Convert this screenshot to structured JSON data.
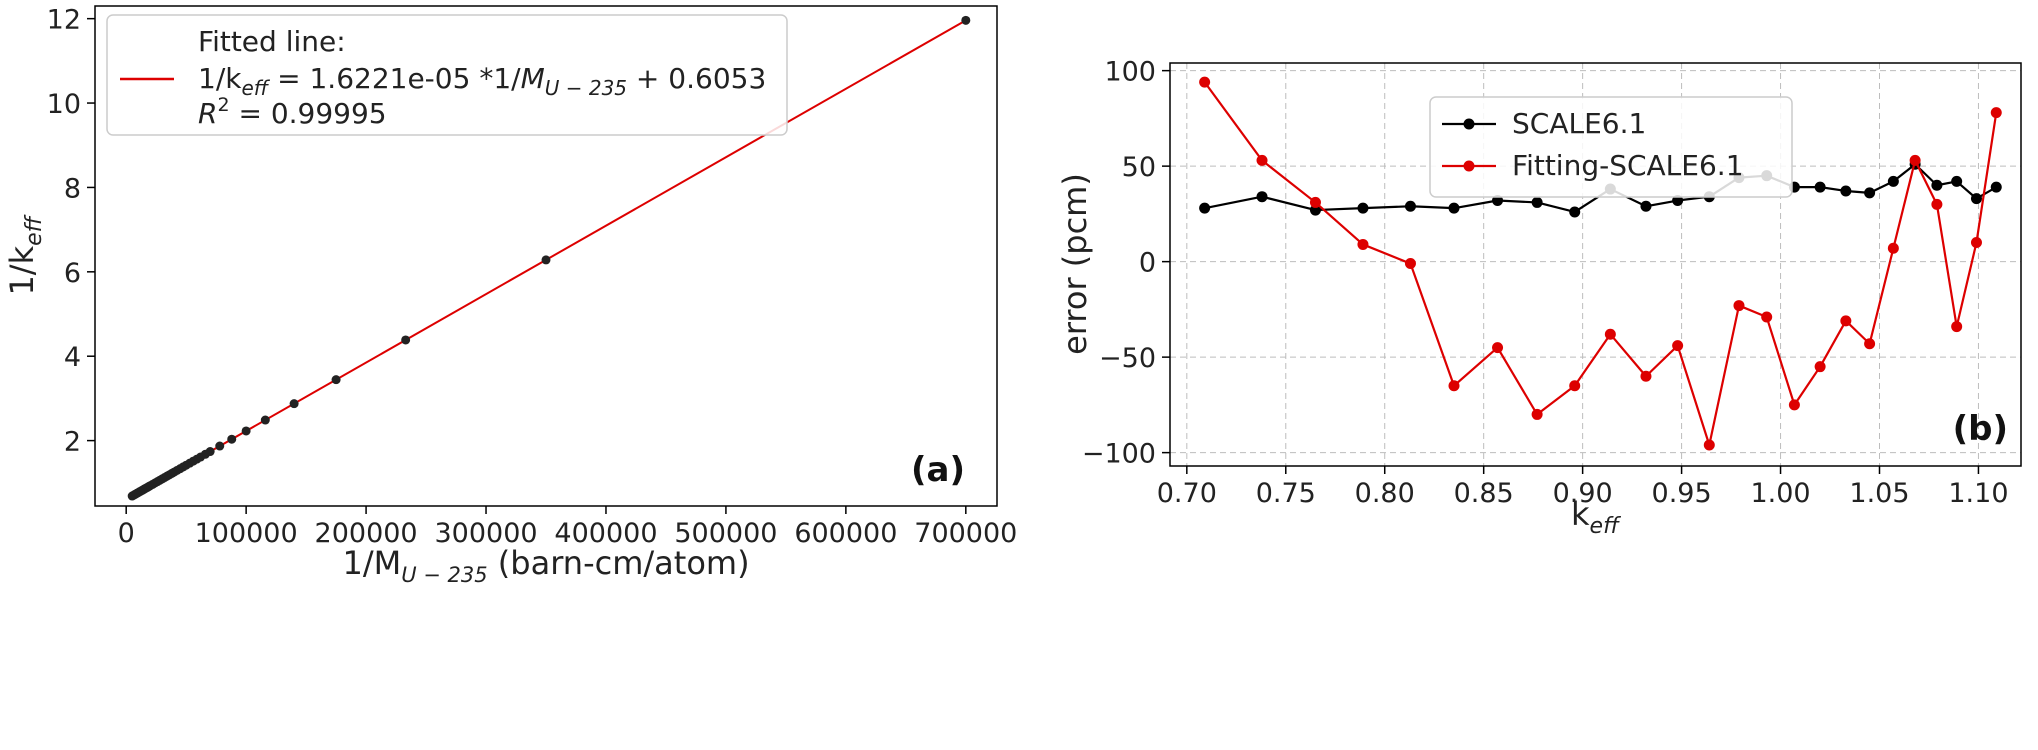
{
  "chart_data": [
    {
      "type": "scatter",
      "panel_label": "(a)",
      "xlabel_main": "1/M",
      "xlabel_sub": "U − 235",
      "xlabel_rest": " (barn-cm/atom)",
      "ylabel_main": "1/k",
      "ylabel_sub": "eff",
      "xlim": [
        -26000,
        726000
      ],
      "ylim": [
        0.45,
        12.3
      ],
      "xticks": [
        0,
        100000,
        200000,
        300000,
        400000,
        500000,
        600000,
        700000
      ],
      "xtick_labels": [
        "0",
        "100000",
        "200000",
        "300000",
        "400000",
        "500000",
        "600000",
        "700000"
      ],
      "yticks": [
        2,
        4,
        6,
        8,
        10,
        12
      ],
      "ytick_labels": [
        "2",
        "4",
        "6",
        "8",
        "10",
        "12"
      ],
      "legend": {
        "line1": "Fitted line:",
        "line2_a": "1/k",
        "line2_b": "eff",
        "line2_c": " = 1.6221e-05 *1/",
        "line2_d": "M",
        "line2_e": "U − 235",
        "line2_f": " + 0.6053",
        "line3_a": "R",
        "line3_b": "2",
        "line3_c": " = 0.99995",
        "placement": "upper-left"
      },
      "fit": {
        "slope": 1.6221e-05,
        "intercept": 0.6053,
        "x_range": [
          5000,
          700000
        ]
      },
      "series": [
        {
          "name": "data",
          "x": [
            5000,
            6000,
            7000,
            8000,
            9000,
            10000,
            11000,
            12000,
            13000,
            14000,
            15000,
            16000,
            17000,
            18000,
            19000,
            20000,
            22000,
            24000,
            26000,
            28000,
            30000,
            32000,
            34000,
            36000,
            38000,
            40000,
            42500,
            45000,
            47500,
            50000,
            53000,
            56000,
            59000,
            62000,
            66000,
            70000,
            78000,
            88000,
            100000,
            116000,
            140000,
            175000,
            233000,
            350000,
            700000
          ],
          "y": [
            0.686,
            0.703,
            0.719,
            0.735,
            0.751,
            0.768,
            0.784,
            0.8,
            0.816,
            0.832,
            0.849,
            0.865,
            0.881,
            0.897,
            0.914,
            0.93,
            0.962,
            0.995,
            1.027,
            1.06,
            1.092,
            1.124,
            1.157,
            1.189,
            1.222,
            1.254,
            1.295,
            1.335,
            1.376,
            1.416,
            1.465,
            1.514,
            1.562,
            1.611,
            1.676,
            1.741,
            1.871,
            2.033,
            2.228,
            2.487,
            2.876,
            3.444,
            4.385,
            6.283,
            11.96
          ]
        }
      ]
    },
    {
      "type": "line",
      "panel_label": "(b)",
      "xlabel_main": "k",
      "xlabel_sub": "eff",
      "ylabel": "error (pcm)",
      "xlim": [
        0.6915,
        1.1215
      ],
      "ylim": [
        -107,
        104
      ],
      "xticks": [
        0.7,
        0.75,
        0.8,
        0.85,
        0.9,
        0.95,
        1.0,
        1.05,
        1.1
      ],
      "xtick_labels": [
        "0.70",
        "0.75",
        "0.80",
        "0.85",
        "0.90",
        "0.95",
        "1.00",
        "1.05",
        "1.10"
      ],
      "yticks": [
        -100,
        -50,
        0,
        50,
        100
      ],
      "ytick_labels": [
        "−100",
        "−50",
        "0",
        "50",
        "100"
      ],
      "grid": true,
      "legend_placement": "upper-center",
      "series": [
        {
          "name": "SCALE6.1",
          "color": "#000000",
          "x": [
            0.709,
            0.738,
            0.765,
            0.789,
            0.813,
            0.835,
            0.857,
            0.877,
            0.896,
            0.914,
            0.932,
            0.948,
            0.964,
            0.979,
            0.993,
            1.007,
            1.02,
            1.033,
            1.045,
            1.057,
            1.068,
            1.079,
            1.089,
            1.099,
            1.109
          ],
          "values": [
            28,
            34,
            27,
            28,
            29,
            28,
            32,
            31,
            26,
            38,
            29,
            32,
            34,
            44,
            45,
            39,
            39,
            37,
            36,
            42,
            51,
            40,
            42,
            33,
            39
          ]
        },
        {
          "name": "Fitting-SCALE6.1",
          "color": "#dd0000",
          "x": [
            0.709,
            0.738,
            0.765,
            0.789,
            0.813,
            0.835,
            0.857,
            0.877,
            0.896,
            0.914,
            0.932,
            0.948,
            0.964,
            0.979,
            0.993,
            1.007,
            1.02,
            1.033,
            1.045,
            1.057,
            1.068,
            1.079,
            1.089,
            1.099,
            1.109
          ],
          "values": [
            94,
            53,
            31,
            9,
            -1,
            -65,
            -45,
            -80,
            -65,
            -38,
            -60,
            -44,
            -96,
            -23,
            -29,
            -75,
            -55,
            -31,
            -43,
            7,
            53,
            30,
            -34,
            10,
            78
          ]
        }
      ]
    }
  ]
}
